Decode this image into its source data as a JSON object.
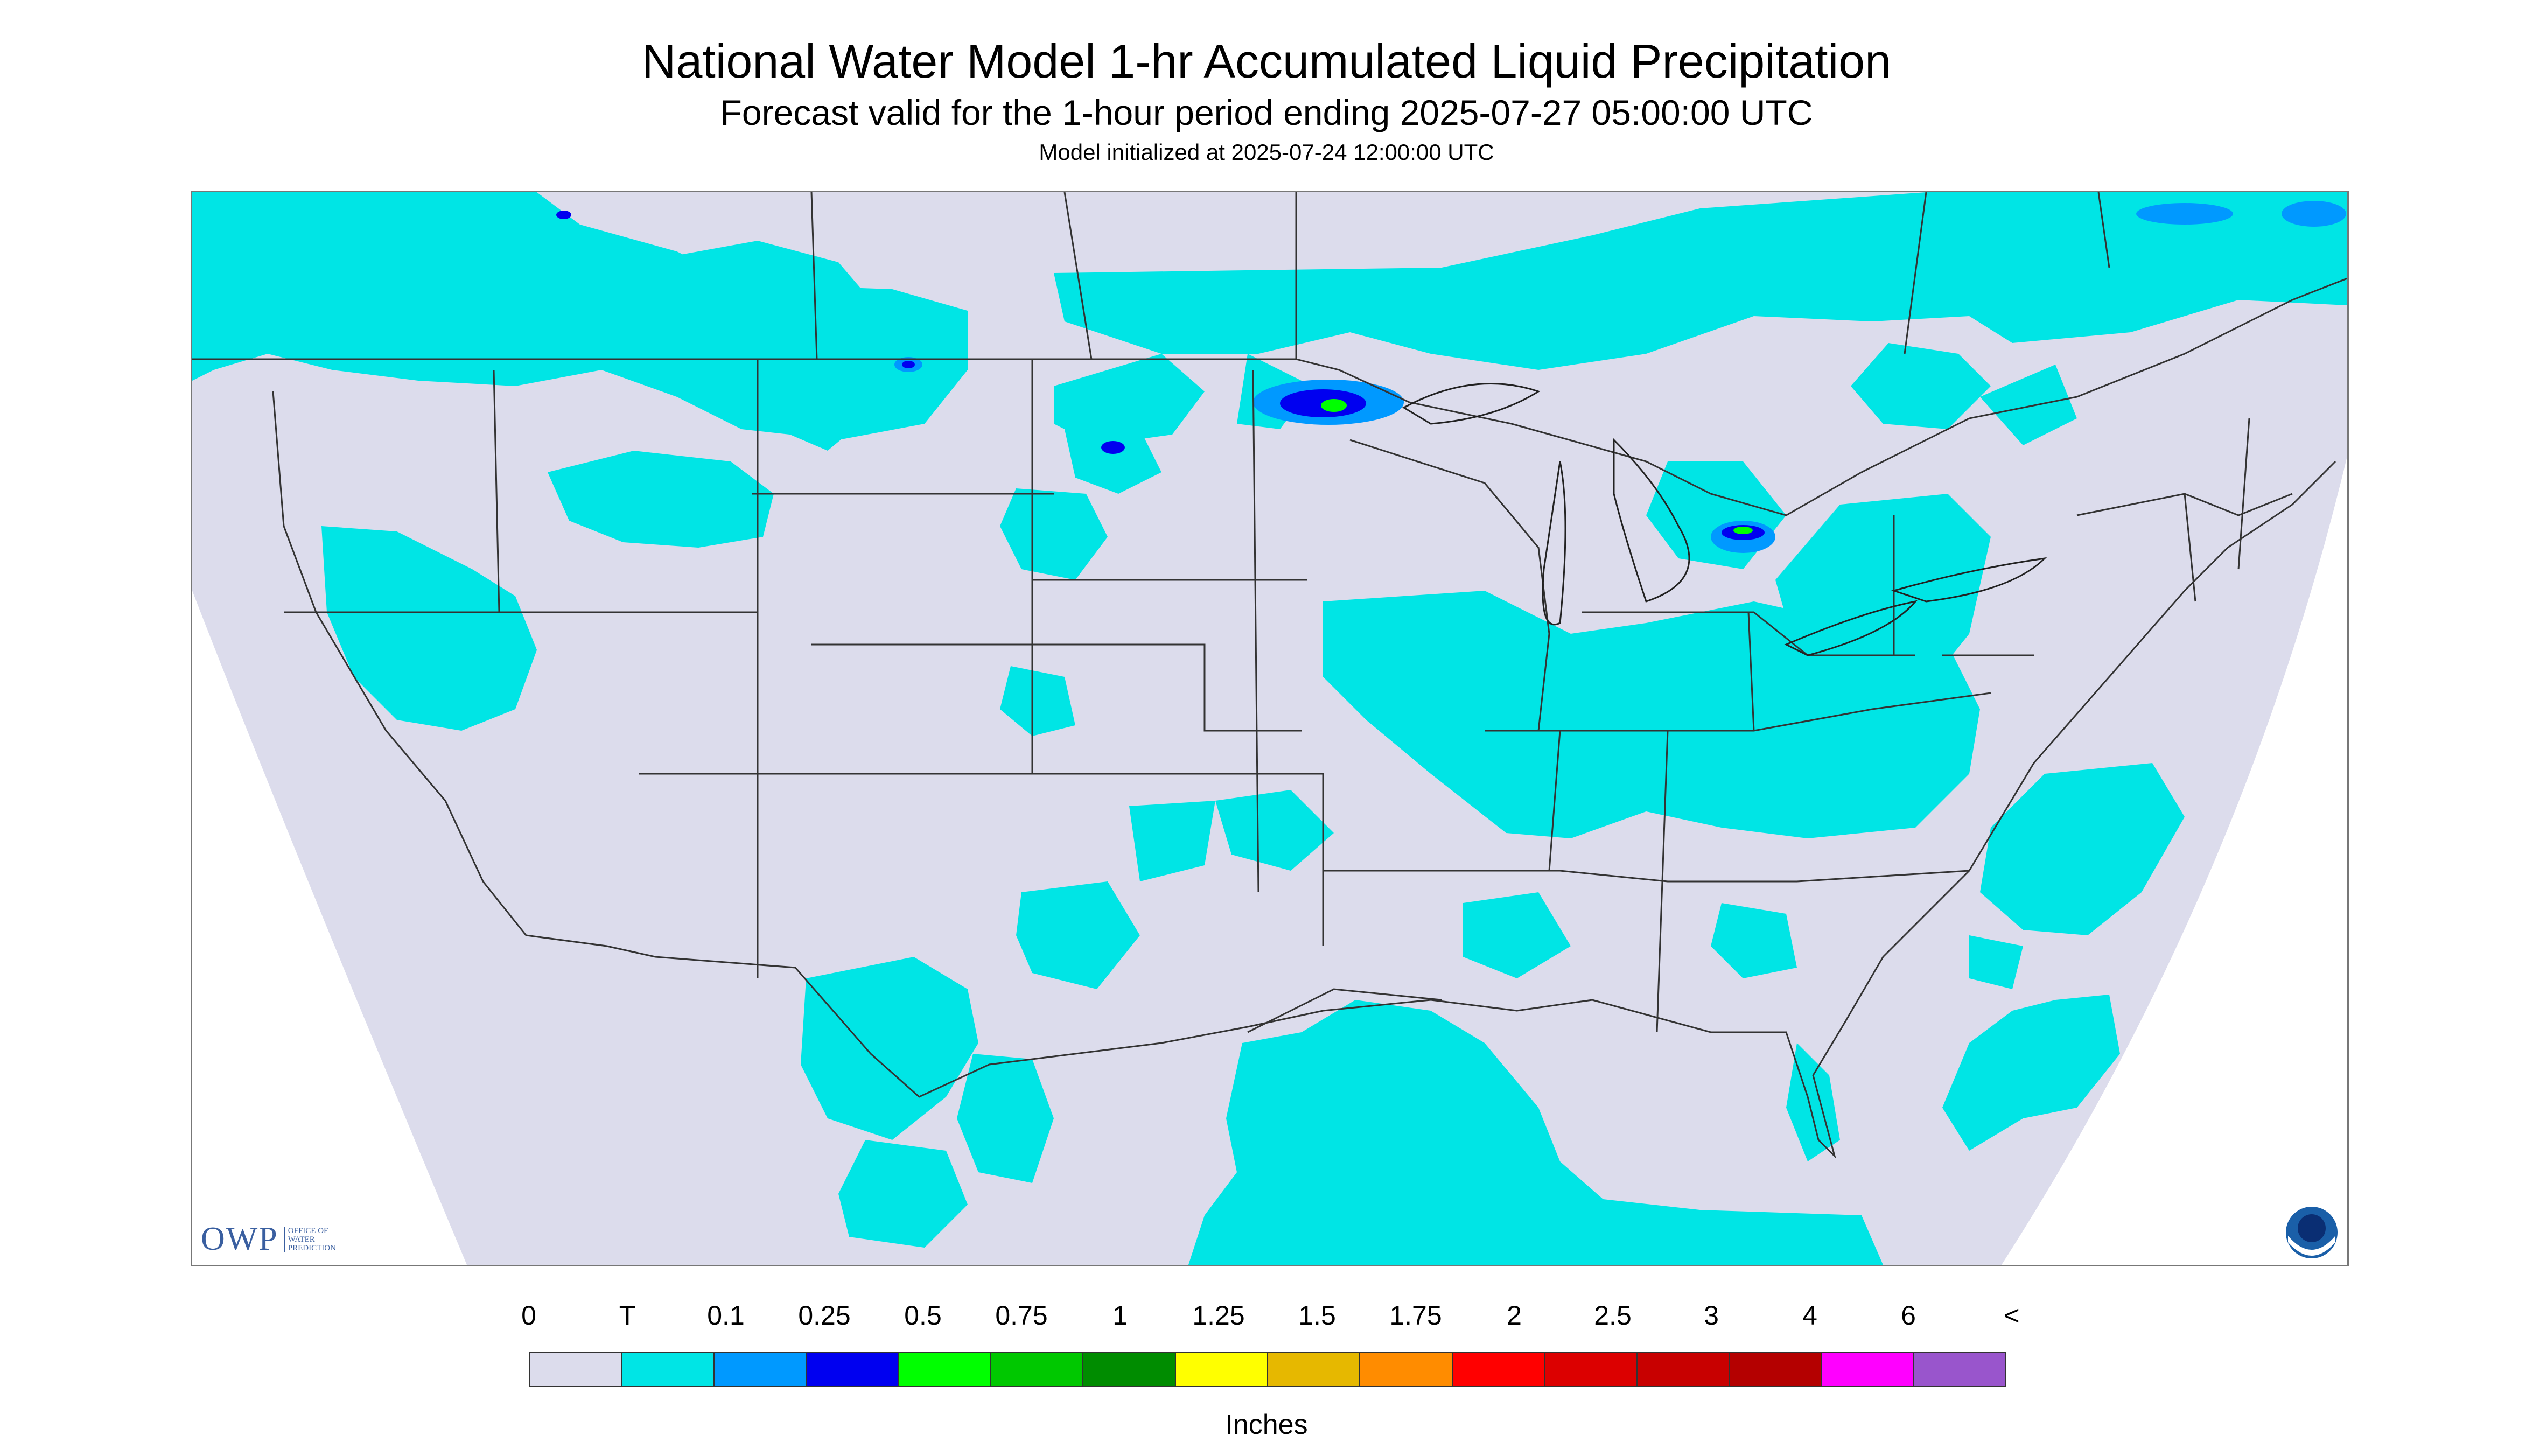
{
  "header": {
    "title": "National Water Model 1-hr Accumulated Liquid Precipitation",
    "subtitle": "Forecast valid for the 1-hour period ending 2025-07-27 05:00:00 UTC",
    "init": "Model initialized at 2025-07-24 12:00:00 UTC"
  },
  "logos": {
    "owp_abbrev": "OWP",
    "owp_line1": "OFFICE OF",
    "owp_line2": "WATER",
    "owp_line3": "PREDICTION",
    "noaa": "NOAA"
  },
  "colors": {
    "background": "#ffffff",
    "no_data": "#dcdcec",
    "trace": "#00e5e5",
    "borders": "#333333"
  },
  "legend": {
    "labels": [
      "0",
      "T",
      "0.1",
      "0.25",
      "0.5",
      "0.75",
      "1",
      "1.25",
      "1.5",
      "1.75",
      "2",
      "2.5",
      "3",
      "4",
      "6",
      "<"
    ],
    "colors": [
      "#dcdcec",
      "#00e5e5",
      "#0099ff",
      "#0000f0",
      "#00ff00",
      "#00c800",
      "#008c00",
      "#ffff00",
      "#e6b800",
      "#ff8c00",
      "#ff0000",
      "#dc0000",
      "#c80000",
      "#b40000",
      "#ff00ff",
      "#9955cc"
    ],
    "units": "Inches"
  }
}
